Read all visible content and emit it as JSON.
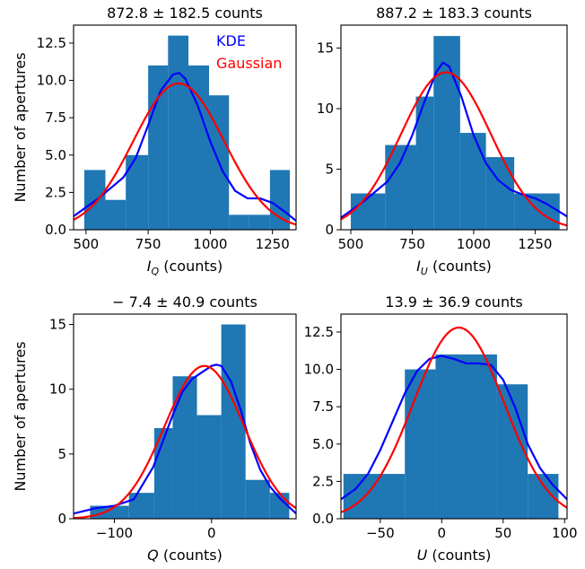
{
  "y_axis_label": "Number of apertures",
  "legend": [
    {
      "label": "KDE",
      "color": "#0000ff"
    },
    {
      "label": "Gaussian",
      "color": "#ff0000"
    }
  ],
  "colors": {
    "bars": "#1f77b4",
    "kde": "#0000ff",
    "gaussian": "#ff0000"
  },
  "chart_data": [
    {
      "type": "bar",
      "title": "872.8 ± 182.5 counts",
      "xlabel_var": "I",
      "xlabel_sub": "Q",
      "xlabel_unit": " (counts)",
      "ylabel": "Number of apertures",
      "xlim": [
        450,
        1345
      ],
      "ylim": [
        0,
        13.7
      ],
      "xticks": [
        500,
        750,
        1000,
        1250
      ],
      "xtick_labels": [
        "500",
        "750",
        "1000",
        "1250"
      ],
      "yticks": [
        0,
        2.5,
        5,
        7.5,
        10,
        12.5
      ],
      "ytick_labels": [
        "0.0",
        "2.5",
        "5.0",
        "7.5",
        "10.0",
        "12.5"
      ],
      "bins": [
        [
          493,
          578,
          4
        ],
        [
          578,
          660,
          2
        ],
        [
          660,
          750,
          5
        ],
        [
          750,
          830,
          11
        ],
        [
          830,
          912,
          13
        ],
        [
          912,
          995,
          11
        ],
        [
          995,
          1075,
          9
        ],
        [
          1075,
          1155,
          1
        ],
        [
          1155,
          1240,
          1
        ],
        [
          1240,
          1320,
          4
        ]
      ],
      "kde": {
        "x": [
          450,
          550,
          650,
          700,
          750,
          800,
          850,
          875,
          900,
          950,
          1000,
          1050,
          1100,
          1150,
          1200,
          1250,
          1300,
          1345
        ],
        "y": [
          0.9,
          2.1,
          3.5,
          4.8,
          7.0,
          9.3,
          10.4,
          10.5,
          10.1,
          8.3,
          5.9,
          3.9,
          2.6,
          2.1,
          2.1,
          1.8,
          1.2,
          0.6
        ]
      },
      "gaussian": {
        "mean": 872.8,
        "std": 182.5,
        "peak": 9.8
      },
      "legend": true
    },
    {
      "type": "bar",
      "title": "887.2 ± 183.3 counts",
      "xlabel_var": "I",
      "xlabel_sub": "U",
      "xlabel_unit": " (counts)",
      "ylabel": "",
      "xlim": [
        460,
        1380
      ],
      "ylim": [
        0,
        16.9
      ],
      "xticks": [
        500,
        750,
        1000,
        1250
      ],
      "xtick_labels": [
        "500",
        "750",
        "1000",
        "1250"
      ],
      "yticks": [
        0,
        5,
        10,
        15
      ],
      "ytick_labels": [
        "0",
        "5",
        "10",
        "15"
      ],
      "bins": [
        [
          500,
          640,
          3
        ],
        [
          640,
          765,
          7
        ],
        [
          765,
          837,
          11
        ],
        [
          837,
          945,
          16
        ],
        [
          945,
          1050,
          8
        ],
        [
          1050,
          1165,
          6
        ],
        [
          1165,
          1350,
          3
        ]
      ],
      "kde": {
        "x": [
          460,
          550,
          650,
          700,
          750,
          800,
          850,
          875,
          900,
          950,
          1000,
          1050,
          1100,
          1150,
          1200,
          1250,
          1300,
          1380
        ],
        "y": [
          1.0,
          2.3,
          4.0,
          5.5,
          7.8,
          10.6,
          13.1,
          13.8,
          13.5,
          11.0,
          7.8,
          5.5,
          4.1,
          3.3,
          2.9,
          2.6,
          2.1,
          1.1
        ]
      },
      "gaussian": {
        "mean": 887.2,
        "std": 183.3,
        "peak": 13.0
      },
      "legend": false
    },
    {
      "type": "bar",
      "title": "− 7.4 ± 40.9 counts",
      "xlabel_var": "Q",
      "xlabel_sub": "",
      "xlabel_unit": " (counts)",
      "ylabel": "Number of apertures",
      "xlim": [
        -142,
        87
      ],
      "ylim": [
        0,
        15.8
      ],
      "xticks": [
        -100,
        0
      ],
      "xtick_labels": [
        "−100",
        "0"
      ],
      "yticks": [
        0,
        5,
        10,
        15
      ],
      "ytick_labels": [
        "0",
        "5",
        "10",
        "15"
      ],
      "bins": [
        [
          -125,
          -85,
          1
        ],
        [
          -85,
          -59,
          2
        ],
        [
          -59,
          -40,
          7
        ],
        [
          -40,
          -15,
          11
        ],
        [
          -15,
          10,
          8
        ],
        [
          10,
          35,
          15
        ],
        [
          35,
          60,
          3
        ],
        [
          60,
          80,
          2
        ]
      ],
      "kde": {
        "x": [
          -142,
          -120,
          -100,
          -80,
          -60,
          -40,
          -30,
          -20,
          -10,
          0,
          5,
          10,
          20,
          30,
          40,
          50,
          60,
          70,
          87
        ],
        "y": [
          0.4,
          0.8,
          1.0,
          1.5,
          4.0,
          8.0,
          9.8,
          10.8,
          11.3,
          11.8,
          11.9,
          11.8,
          10.6,
          8.4,
          5.8,
          3.8,
          2.5,
          1.6,
          0.4
        ]
      },
      "gaussian": {
        "mean": -7.4,
        "std": 40.9,
        "peak": 11.8
      },
      "legend": false
    },
    {
      "type": "bar",
      "title": "13.9 ± 36.9 counts",
      "xlabel_var": "U",
      "xlabel_sub": "",
      "xlabel_unit": " (counts)",
      "ylabel": "",
      "xlim": [
        -82,
        102
      ],
      "ylim": [
        0,
        13.7
      ],
      "xticks": [
        -50,
        0,
        50,
        100
      ],
      "xtick_labels": [
        "−50",
        "0",
        "50",
        "100"
      ],
      "yticks": [
        0,
        2.5,
        5,
        7.5,
        10,
        12.5
      ],
      "ytick_labels": [
        "0.0",
        "2.5",
        "5.0",
        "7.5",
        "10.0",
        "12.5"
      ],
      "bins": [
        [
          -80,
          -30,
          3
        ],
        [
          -30,
          -5,
          10
        ],
        [
          -5,
          45,
          11
        ],
        [
          45,
          70,
          9
        ],
        [
          70,
          95,
          3
        ]
      ],
      "kde": {
        "x": [
          -82,
          -70,
          -60,
          -50,
          -40,
          -30,
          -20,
          -10,
          0,
          10,
          20,
          30,
          40,
          50,
          60,
          70,
          80,
          90,
          102
        ],
        "y": [
          1.3,
          2.0,
          3.0,
          4.6,
          6.5,
          8.4,
          9.9,
          10.7,
          10.9,
          10.7,
          10.4,
          10.4,
          10.3,
          9.3,
          7.4,
          5.0,
          3.4,
          2.3,
          1.3
        ]
      },
      "gaussian": {
        "mean": 13.9,
        "std": 36.9,
        "peak": 12.8
      },
      "legend": false
    }
  ]
}
